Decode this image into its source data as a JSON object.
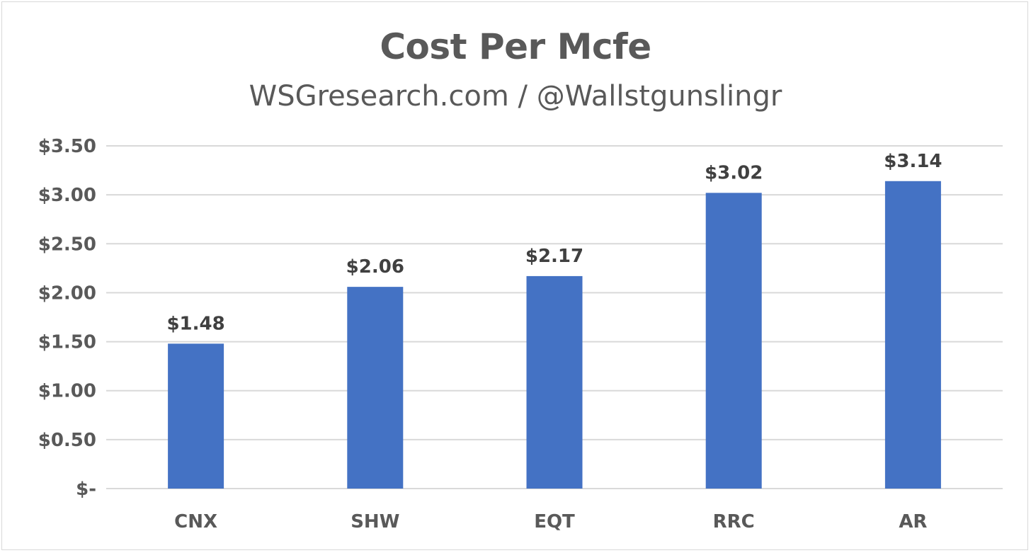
{
  "chart_data": {
    "type": "bar",
    "title": "Cost Per Mcfe",
    "subtitle": "WSGresearch.com / @Wallstgunslingr",
    "categories": [
      "CNX",
      "SHW",
      "EQT",
      "RRC",
      "AR"
    ],
    "values": [
      1.48,
      2.06,
      2.17,
      3.02,
      3.14
    ],
    "data_labels": [
      "$1.48",
      "$2.06",
      "$2.17",
      "$3.02",
      "$3.14"
    ],
    "y_ticks": [
      0,
      0.5,
      1,
      1.5,
      2,
      2.5,
      3,
      3.5
    ],
    "y_tick_labels": [
      "$-",
      "$0.50",
      "$1.00",
      "$1.50",
      "$2.00",
      "$2.50",
      "$3.00",
      "$3.50"
    ],
    "ylim": [
      0,
      3.5
    ],
    "grid": true,
    "legend": "none",
    "bar_color": "#4472c4",
    "text_color": "#595959"
  }
}
